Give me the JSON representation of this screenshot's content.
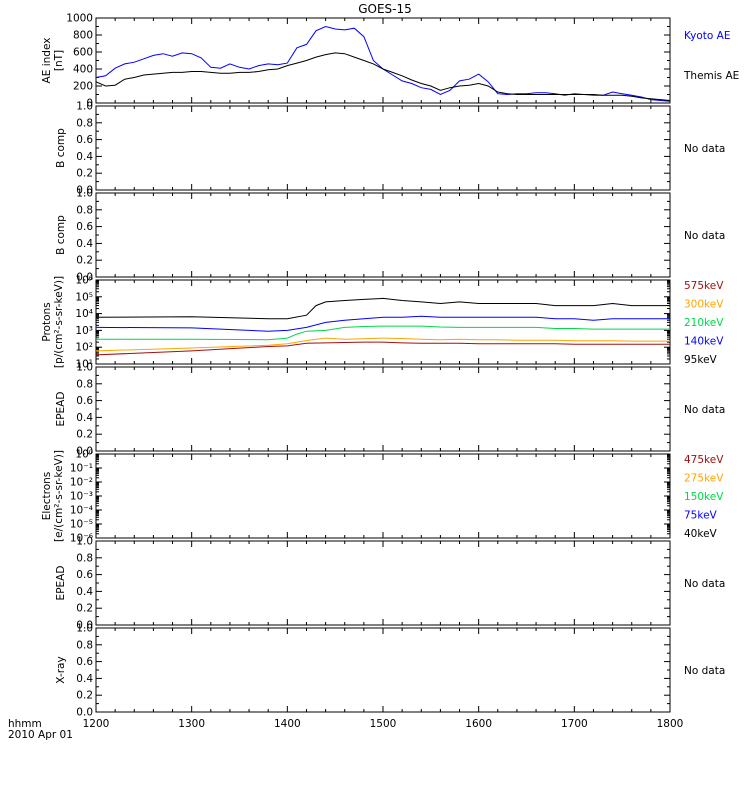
{
  "title": "GOES-15",
  "colors": {
    "black": "#000000",
    "blue": "#0000ff",
    "green": "#00d84a",
    "orange": "#ffa500",
    "red": "#a01010"
  },
  "footer": {
    "time_label": "hhmm",
    "date_label": "2010 Apr 01"
  },
  "x_axis": {
    "min": 1200,
    "max": 1800,
    "tick_labels": [
      "1200",
      "1300",
      "1400",
      "1500",
      "1600",
      "1700",
      "1800"
    ]
  },
  "chart_data": [
    {
      "type": "line",
      "id": "ae",
      "ylabel_lines": [
        "AE index",
        "[nT]"
      ],
      "ylim": [
        0,
        1000
      ],
      "scale": "linear",
      "yticks": [
        "0",
        "200",
        "400",
        "600",
        "800",
        "1000"
      ],
      "series": [
        {
          "name": "Kyoto AE",
          "color": "#0000ff",
          "x": [
            1200,
            1210,
            1220,
            1230,
            1240,
            1250,
            1260,
            1270,
            1280,
            1290,
            1300,
            1310,
            1320,
            1330,
            1340,
            1350,
            1360,
            1370,
            1380,
            1390,
            1400,
            1410,
            1420,
            1430,
            1440,
            1450,
            1460,
            1470,
            1480,
            1490,
            1500,
            1510,
            1520,
            1530,
            1540,
            1550,
            1560,
            1570,
            1580,
            1590,
            1600,
            1610,
            1620,
            1630,
            1640,
            1650,
            1660,
            1670,
            1680,
            1690,
            1700,
            1710,
            1720,
            1730,
            1740,
            1750,
            1760,
            1770,
            1780,
            1790,
            1800
          ],
          "y": [
            300,
            320,
            410,
            460,
            480,
            520,
            560,
            580,
            550,
            590,
            580,
            530,
            420,
            410,
            460,
            420,
            400,
            440,
            460,
            450,
            470,
            650,
            690,
            850,
            900,
            870,
            860,
            880,
            780,
            500,
            400,
            330,
            260,
            230,
            180,
            160,
            100,
            150,
            260,
            280,
            340,
            250,
            110,
            100,
            110,
            110,
            120,
            120,
            110,
            90,
            110,
            100,
            90,
            90,
            130,
            110,
            90,
            70,
            40,
            30,
            20
          ]
        },
        {
          "name": "Themis AE",
          "color": "#000000",
          "x": [
            1200,
            1210,
            1220,
            1230,
            1240,
            1250,
            1260,
            1270,
            1280,
            1290,
            1300,
            1310,
            1320,
            1330,
            1340,
            1350,
            1360,
            1370,
            1380,
            1390,
            1400,
            1410,
            1420,
            1430,
            1440,
            1450,
            1460,
            1470,
            1480,
            1490,
            1500,
            1510,
            1520,
            1530,
            1540,
            1550,
            1560,
            1570,
            1580,
            1590,
            1600,
            1610,
            1620,
            1630,
            1640,
            1650,
            1660,
            1670,
            1680,
            1690,
            1700,
            1710,
            1720,
            1730,
            1740,
            1750,
            1760,
            1770,
            1780,
            1790,
            1800
          ],
          "y": [
            250,
            200,
            210,
            280,
            300,
            330,
            340,
            350,
            360,
            360,
            370,
            370,
            360,
            350,
            350,
            360,
            360,
            370,
            390,
            400,
            440,
            470,
            500,
            540,
            570,
            590,
            580,
            540,
            500,
            460,
            400,
            360,
            320,
            270,
            230,
            200,
            150,
            180,
            200,
            210,
            230,
            200,
            130,
            110,
            100,
            100,
            100,
            100,
            100,
            100,
            100,
            100,
            100,
            90,
            90,
            90,
            80,
            60,
            50,
            40,
            30
          ]
        }
      ],
      "legend": [
        "Kyoto AE",
        "Themis AE"
      ]
    },
    {
      "type": "line",
      "id": "b1",
      "ylabel_lines": [
        "B comp"
      ],
      "ylim": [
        0,
        1
      ],
      "scale": "linear",
      "yticks": [
        "0.0",
        "0.2",
        "0.4",
        "0.6",
        "0.8",
        "1.0"
      ],
      "series": [],
      "note": "No data"
    },
    {
      "type": "line",
      "id": "b2",
      "ylabel_lines": [
        "B comp"
      ],
      "ylim": [
        0,
        1
      ],
      "scale": "linear",
      "yticks": [
        "0.0",
        "0.2",
        "0.4",
        "0.6",
        "0.8",
        "1.0"
      ],
      "series": [],
      "note": "No data"
    },
    {
      "type": "line",
      "id": "protons",
      "ylabel_lines": [
        "Protons",
        "[p/(cm²-s-sr-keV)]"
      ],
      "ylim": [
        10,
        1000000
      ],
      "scale": "log",
      "yticks": [
        "10¹",
        "10²",
        "10³",
        "10⁴",
        "10⁵",
        "10⁶"
      ],
      "series": [
        {
          "name": "95keV",
          "color": "#000000",
          "x": [
            1200,
            1300,
            1380,
            1400,
            1420,
            1430,
            1440,
            1460,
            1480,
            1500,
            1520,
            1540,
            1560,
            1580,
            1600,
            1620,
            1640,
            1660,
            1680,
            1700,
            1720,
            1740,
            1760,
            1780,
            1800
          ],
          "y": [
            6000,
            6500,
            5000,
            5000,
            8000,
            30000,
            50000,
            60000,
            70000,
            80000,
            60000,
            50000,
            40000,
            50000,
            40000,
            40000,
            40000,
            40000,
            30000,
            30000,
            30000,
            40000,
            30000,
            30000,
            30000
          ]
        },
        {
          "name": "140keV",
          "color": "#0000ff",
          "x": [
            1200,
            1300,
            1380,
            1400,
            1420,
            1440,
            1460,
            1480,
            1500,
            1520,
            1540,
            1560,
            1580,
            1600,
            1620,
            1640,
            1660,
            1680,
            1700,
            1720,
            1740,
            1760,
            1780,
            1800
          ],
          "y": [
            1500,
            1400,
            900,
            1000,
            1500,
            3000,
            4000,
            5000,
            6000,
            6000,
            7000,
            6000,
            6000,
            6000,
            6000,
            6000,
            6000,
            5000,
            5000,
            4000,
            5000,
            5000,
            5000,
            5000
          ]
        },
        {
          "name": "210keV",
          "color": "#00d84a",
          "x": [
            1200,
            1300,
            1380,
            1400,
            1410,
            1420,
            1440,
            1460,
            1480,
            1500,
            1520,
            1540,
            1560,
            1580,
            1600,
            1620,
            1640,
            1660,
            1680,
            1700,
            1720,
            1740,
            1760,
            1780,
            1800
          ],
          "y": [
            300,
            300,
            280,
            350,
            600,
            900,
            1000,
            1500,
            1700,
            1800,
            1800,
            1800,
            1600,
            1500,
            1500,
            1500,
            1500,
            1500,
            1300,
            1300,
            1200,
            1200,
            1200,
            1200,
            1200
          ]
        },
        {
          "name": "300keV",
          "color": "#ffa500",
          "x": [
            1200,
            1300,
            1380,
            1400,
            1420,
            1440,
            1460,
            1480,
            1500,
            1520,
            1540,
            1560,
            1580,
            1600,
            1620,
            1640,
            1660,
            1680,
            1700,
            1720,
            1740,
            1760,
            1780,
            1800
          ],
          "y": [
            60,
            90,
            130,
            160,
            250,
            350,
            300,
            320,
            350,
            330,
            300,
            280,
            300,
            280,
            280,
            260,
            260,
            260,
            240,
            240,
            240,
            230,
            230,
            230
          ]
        },
        {
          "name": "575keV",
          "color": "#a01010",
          "x": [
            1200,
            1300,
            1380,
            1400,
            1420,
            1440,
            1460,
            1480,
            1500,
            1520,
            1540,
            1560,
            1580,
            1600,
            1620,
            1640,
            1660,
            1680,
            1700,
            1720,
            1740,
            1760,
            1780,
            1800
          ],
          "y": [
            35,
            60,
            110,
            120,
            170,
            180,
            190,
            200,
            200,
            180,
            170,
            170,
            170,
            160,
            160,
            160,
            160,
            160,
            150,
            150,
            150,
            150,
            150,
            150
          ]
        }
      ],
      "legend": [
        "575keV",
        "300keV",
        "210keV",
        "140keV",
        "95keV"
      ]
    },
    {
      "type": "line",
      "id": "epead1",
      "ylabel_lines": [
        "EPEAD"
      ],
      "ylim": [
        0,
        1
      ],
      "scale": "linear",
      "yticks": [
        "0.0",
        "0.2",
        "0.4",
        "0.6",
        "0.8",
        "1.0"
      ],
      "series": [],
      "note": "No data"
    },
    {
      "type": "line",
      "id": "electrons",
      "ylabel_lines": [
        "Electrons",
        "[e/(cm²-s-sr-keV)]"
      ],
      "ylim": [
        1e-06,
        1
      ],
      "scale": "log",
      "yticks": [
        "10⁻⁶",
        "10⁻⁵",
        "10⁻⁴",
        "10⁻³",
        "10⁻²",
        "10⁻¹",
        "10⁰"
      ],
      "series": [],
      "legend": [
        "475keV",
        "275keV",
        "150keV",
        "75keV",
        "40keV"
      ],
      "legend_colors": [
        "#a01010",
        "#ffa500",
        "#00d84a",
        "#0000ff",
        "#000000"
      ]
    },
    {
      "type": "line",
      "id": "epead2",
      "ylabel_lines": [
        "EPEAD"
      ],
      "ylim": [
        0,
        1
      ],
      "scale": "linear",
      "yticks": [
        "0.0",
        "0.2",
        "0.4",
        "0.6",
        "0.8",
        "1.0"
      ],
      "series": [],
      "note": "No data"
    },
    {
      "type": "line",
      "id": "xray",
      "ylabel_lines": [
        "X-ray"
      ],
      "ylim": [
        0,
        1
      ],
      "scale": "linear",
      "yticks": [
        "0.0",
        "0.2",
        "0.4",
        "0.6",
        "0.8",
        "1.0"
      ],
      "series": [],
      "note": "No data"
    }
  ]
}
